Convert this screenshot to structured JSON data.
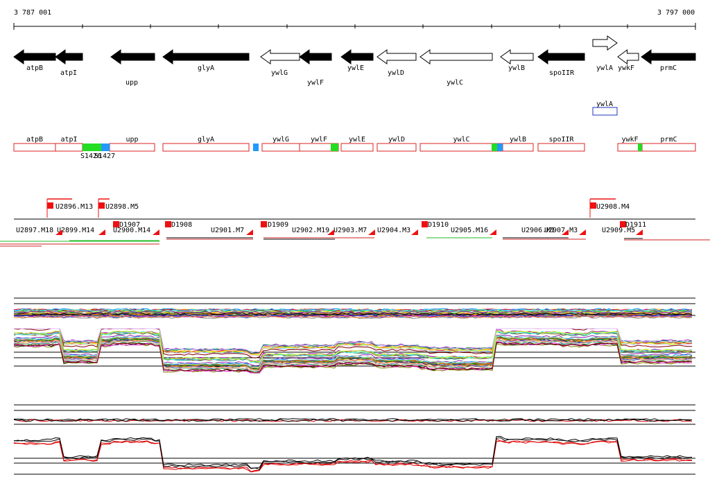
{
  "coords": {
    "start": "3 787 001",
    "end": "3 797 000"
  },
  "genes": [
    {
      "name": "atpB",
      "strand": "-",
      "filled": true
    },
    {
      "name": "atpI",
      "strand": "-",
      "filled": true
    },
    {
      "name": "upp",
      "strand": "-",
      "filled": true
    },
    {
      "name": "glyA",
      "strand": "-",
      "filled": true
    },
    {
      "name": "ywlG",
      "strand": "-",
      "filled": false
    },
    {
      "name": "ywlF",
      "strand": "-",
      "filled": true
    },
    {
      "name": "ywlE",
      "strand": "-",
      "filled": true
    },
    {
      "name": "ywlD",
      "strand": "-",
      "filled": false
    },
    {
      "name": "ywlC",
      "strand": "-",
      "filled": false
    },
    {
      "name": "ywlB",
      "strand": "-",
      "filled": false
    },
    {
      "name": "spoIIR",
      "strand": "-",
      "filled": true
    },
    {
      "name": "ywlA",
      "strand": "+",
      "filled": false
    },
    {
      "name": "ywkF",
      "strand": "-",
      "filled": false
    },
    {
      "name": "prmC",
      "strand": "-",
      "filled": true
    }
  ],
  "extra_gene_label": "ywlA",
  "track2": [
    {
      "name": "atpB"
    },
    {
      "name": "atpI"
    },
    {
      "name": "upp"
    },
    {
      "name": "glyA"
    },
    {
      "name": "ywlG"
    },
    {
      "name": "ywlF"
    },
    {
      "name": "ywlE"
    },
    {
      "name": "ywlD"
    },
    {
      "name": "ywlC"
    },
    {
      "name": "ywlB"
    },
    {
      "name": "spoIIR"
    },
    {
      "name": "ywkF"
    },
    {
      "name": "prmC"
    }
  ],
  "snp_labels": [
    "S1426",
    "S1427"
  ],
  "upper_transcripts": [
    "U2896.M13",
    "U2898.M5",
    "U2908.M4"
  ],
  "lower_transcripts": [
    "U2897.M18",
    "U2899.M14",
    "U2900.M14",
    "U2901.M7",
    "U2902.M19",
    "U2903.M7",
    "U2904.M3",
    "U2905.M16",
    "U2906.M1",
    "U2907.M3",
    "U2909.M5"
  ],
  "d_markers": [
    "D1907",
    "D1908",
    "D1909",
    "D1910",
    "D1911"
  ],
  "colors": {
    "gene_fill": "#000000",
    "track_outline": "#dd2222",
    "snp_green": "#22dd22",
    "snp_blue": "#2299ff",
    "ywlA_box": "#2233bb",
    "transcript_red": "#ee1111"
  }
}
